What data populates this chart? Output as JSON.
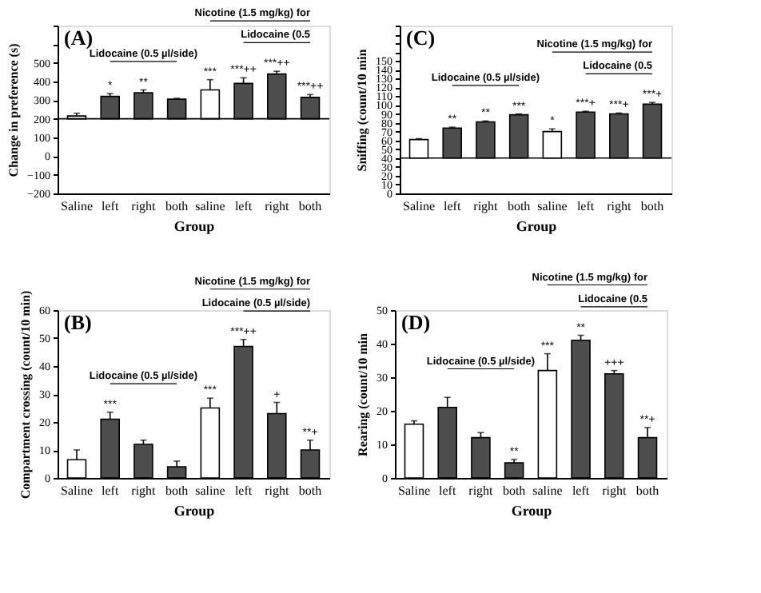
{
  "chart_data": [
    {
      "type": "bar",
      "title": "(A)",
      "xlabel": "Group",
      "ylabel": "Change in preference (s)",
      "categories": [
        "Saline",
        "left",
        "right",
        "both",
        "saline",
        "left",
        "right",
        "both"
      ],
      "base": [
        200,
        200,
        200,
        200,
        200,
        200,
        200,
        200
      ],
      "values": [
        15,
        120,
        140,
        105,
        155,
        190,
        240,
        115
      ],
      "errors": [
        [
          215,
          230
        ],
        [
          320,
          335
        ],
        [
          340,
          355
        ],
        [
          305,
          310
        ],
        [
          355,
          410
        ],
        [
          390,
          420
        ],
        [
          440,
          455
        ],
        [
          315,
          330
        ]
      ],
      "value_labels": [
        null,
        "*",
        "**",
        null,
        "***",
        "***++",
        "***++",
        "***++"
      ],
      "colors": [
        "#ffffff",
        "#4d4d4d",
        "#4d4d4d",
        "#4d4d4d",
        "#ffffff",
        "#4d4d4d",
        "#4d4d4d",
        "#4d4d4d"
      ],
      "annotations": [
        "Lidocaine (0.5 µl/side)",
        "Nicotine (1.5 mg/kg) for",
        "Lidocaine (0.5"
      ],
      "ref_lines": [
        {
          "axis": "y",
          "value": 200,
          "color": "#000000"
        }
      ],
      "ylim": [
        -200,
        700
      ],
      "yticks": [
        -200,
        -100,
        0,
        100,
        200,
        300,
        400,
        500,
        {
          "value": 600,
          "label": null
        },
        {
          "value": 700,
          "label": null
        }
      ],
      "grid": false,
      "legend": false
    },
    {
      "type": "bar",
      "title": "(C)",
      "xlabel": "Group",
      "ylabel": "Sniffing (count/10 min",
      "categories": [
        "Saline",
        "left",
        "right",
        "both",
        "saline",
        "left",
        "right",
        "both"
      ],
      "base": [
        40,
        40,
        40,
        40,
        40,
        40,
        40,
        40
      ],
      "values": [
        21,
        34,
        41,
        49,
        30,
        52,
        50,
        61
      ],
      "errors": [
        [
          61,
          62
        ],
        [
          74,
          75
        ],
        [
          81,
          82
        ],
        [
          89,
          90
        ],
        [
          70,
          73
        ],
        [
          92,
          93
        ],
        [
          90,
          91
        ],
        [
          101,
          103
        ]
      ],
      "value_labels": [
        null,
        "**",
        "**",
        "***",
        "*",
        "***+",
        "***+",
        "***+"
      ],
      "colors": [
        "#ffffff",
        "#4d4d4d",
        "#4d4d4d",
        "#4d4d4d",
        "#ffffff",
        "#4d4d4d",
        "#4d4d4d",
        "#4d4d4d"
      ],
      "annotations": [
        "Lidocaine (0.5 µl/side)",
        "Nicotine (1.5 mg/kg) for",
        "Lidocaine (0.5"
      ],
      "ref_lines": [
        {
          "axis": "y",
          "value": 40,
          "color": "#000000"
        }
      ],
      "ylim": [
        0,
        190
      ],
      "yticks": [
        0,
        10,
        20,
        30,
        40,
        50,
        60,
        70,
        80,
        90,
        100,
        110,
        120,
        130,
        140,
        150,
        {
          "value": 160,
          "label": null
        },
        {
          "value": 170,
          "label": null
        },
        {
          "value": 180,
          "label": null
        },
        {
          "value": 190,
          "label": null
        }
      ],
      "grid": false,
      "legend": false
    },
    {
      "type": "bar",
      "title": "(B)",
      "xlabel": "Group",
      "ylabel": "Compartment crossing (count/10 min)",
      "categories": [
        "Saline",
        "left",
        "right",
        "both",
        "saline",
        "left",
        "right",
        "both"
      ],
      "values": [
        6.5,
        21,
        12,
        4,
        25,
        47,
        23,
        10
      ],
      "errors": [
        [
          6.5,
          10
        ],
        [
          21,
          23.5
        ],
        [
          12,
          13.5
        ],
        [
          4,
          6
        ],
        [
          25,
          28.5
        ],
        [
          47,
          49.5
        ],
        [
          23,
          27
        ],
        [
          10,
          13.5
        ]
      ],
      "value_labels": [
        null,
        "***",
        null,
        null,
        "***",
        "***++",
        "+",
        "**+"
      ],
      "colors": [
        "#ffffff",
        "#4d4d4d",
        "#4d4d4d",
        "#4d4d4d",
        "#ffffff",
        "#4d4d4d",
        "#4d4d4d",
        "#4d4d4d"
      ],
      "annotations": [
        "Lidocaine (0.5 µl/side)",
        "Nicotine (1.5 mg/kg) for",
        "Lidocaine (0.5 µl/side)"
      ],
      "ylim": [
        0,
        60
      ],
      "yticks": [
        0,
        10,
        20,
        30,
        40,
        50,
        60
      ],
      "grid": false,
      "legend": false
    },
    {
      "type": "bar",
      "title": "(D)",
      "xlabel": "Group",
      "ylabel": "Rearing (count/10 min",
      "categories": [
        "Saline",
        "left",
        "right",
        "both",
        "saline",
        "left",
        "right",
        "both"
      ],
      "values": [
        16,
        21,
        12,
        4.5,
        32,
        41,
        31,
        12
      ],
      "errors": [
        [
          16,
          17
        ],
        [
          21,
          24
        ],
        [
          12,
          13.5
        ],
        [
          4.5,
          5.5
        ],
        [
          32,
          37
        ],
        [
          41,
          42.5
        ],
        [
          31,
          32
        ],
        [
          12,
          15
        ]
      ],
      "value_labels": [
        null,
        null,
        null,
        "**",
        "***",
        "**",
        "+++",
        "**+"
      ],
      "colors": [
        "#ffffff",
        "#4d4d4d",
        "#4d4d4d",
        "#4d4d4d",
        "#ffffff",
        "#4d4d4d",
        "#4d4d4d",
        "#4d4d4d"
      ],
      "annotations": [
        "Lidocaine (0.5 µl/side)",
        "Nicotine (1.5 mg/kg) for",
        "Lidocaine (0.5"
      ],
      "ylim": [
        0,
        50
      ],
      "yticks": [
        0,
        10,
        20,
        30,
        40,
        50
      ],
      "grid": false,
      "legend": false
    }
  ]
}
